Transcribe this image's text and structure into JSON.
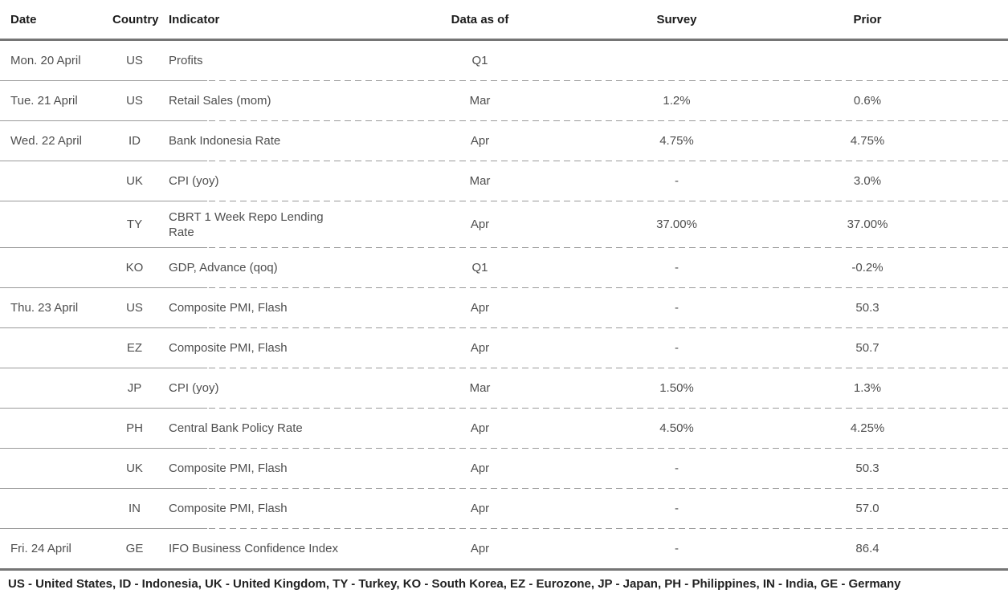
{
  "table": {
    "columns": [
      "Date",
      "Country",
      "Indicator",
      "Data as of",
      "Survey",
      "Prior"
    ],
    "rows": [
      {
        "date": "Mon. 20 April",
        "country": "US",
        "indicator": "Profits",
        "data_as_of": "Q1",
        "survey": "",
        "prior": ""
      },
      {
        "date": "Tue. 21 April",
        "country": "US",
        "indicator": "Retail Sales (mom)",
        "data_as_of": "Mar",
        "survey": "1.2%",
        "prior": "0.6%"
      },
      {
        "date": "Wed. 22 April",
        "country": "ID",
        "indicator": "Bank Indonesia Rate",
        "data_as_of": "Apr",
        "survey": "4.75%",
        "prior": "4.75%"
      },
      {
        "date": "",
        "country": "UK",
        "indicator": "CPI (yoy)",
        "data_as_of": "Mar",
        "survey": "-",
        "prior": "3.0%"
      },
      {
        "date": "",
        "country": "TY",
        "indicator": "CBRT 1 Week Repo Lending\nRate",
        "data_as_of": "Apr",
        "survey": "37.00%",
        "prior": "37.00%"
      },
      {
        "date": "",
        "country": "KO",
        "indicator": "GDP, Advance (qoq)",
        "data_as_of": "Q1",
        "survey": "-",
        "prior": "-0.2%"
      },
      {
        "date": "Thu. 23 April",
        "country": "US",
        "indicator": "Composite PMI, Flash",
        "data_as_of": "Apr",
        "survey": "-",
        "prior": "50.3"
      },
      {
        "date": "",
        "country": "EZ",
        "indicator": "Composite PMI, Flash",
        "data_as_of": "Apr",
        "survey": "-",
        "prior": "50.7"
      },
      {
        "date": "",
        "country": "JP",
        "indicator": "CPI (yoy)",
        "data_as_of": "Mar",
        "survey": "1.50%",
        "prior": "1.3%"
      },
      {
        "date": "",
        "country": "PH",
        "indicator": "Central Bank Policy Rate",
        "data_as_of": "Apr",
        "survey": "4.50%",
        "prior": "4.25%"
      },
      {
        "date": "",
        "country": "UK",
        "indicator": "Composite PMI, Flash",
        "data_as_of": "Apr",
        "survey": "-",
        "prior": "50.3"
      },
      {
        "date": "",
        "country": "IN",
        "indicator": "Composite PMI, Flash",
        "data_as_of": "Apr",
        "survey": "-",
        "prior": "57.0"
      },
      {
        "date": "Fri. 24 April",
        "country": "GE",
        "indicator": "IFO Business Confidence Index",
        "data_as_of": "Apr",
        "survey": "-",
        "prior": "86.4"
      }
    ]
  },
  "footer": {
    "legend": "US - United States, ID - Indonesia, UK - United Kingdom, TY - Turkey, KO - South Korea, EZ - Eurozone, JP - Japan, PH - Philippines, IN - India, GE - Germany"
  },
  "colors": {
    "rule": "#757575",
    "separator": "#9a9a9a",
    "header_text": "#1c1c1c",
    "body_text": "#4f4f4f"
  }
}
